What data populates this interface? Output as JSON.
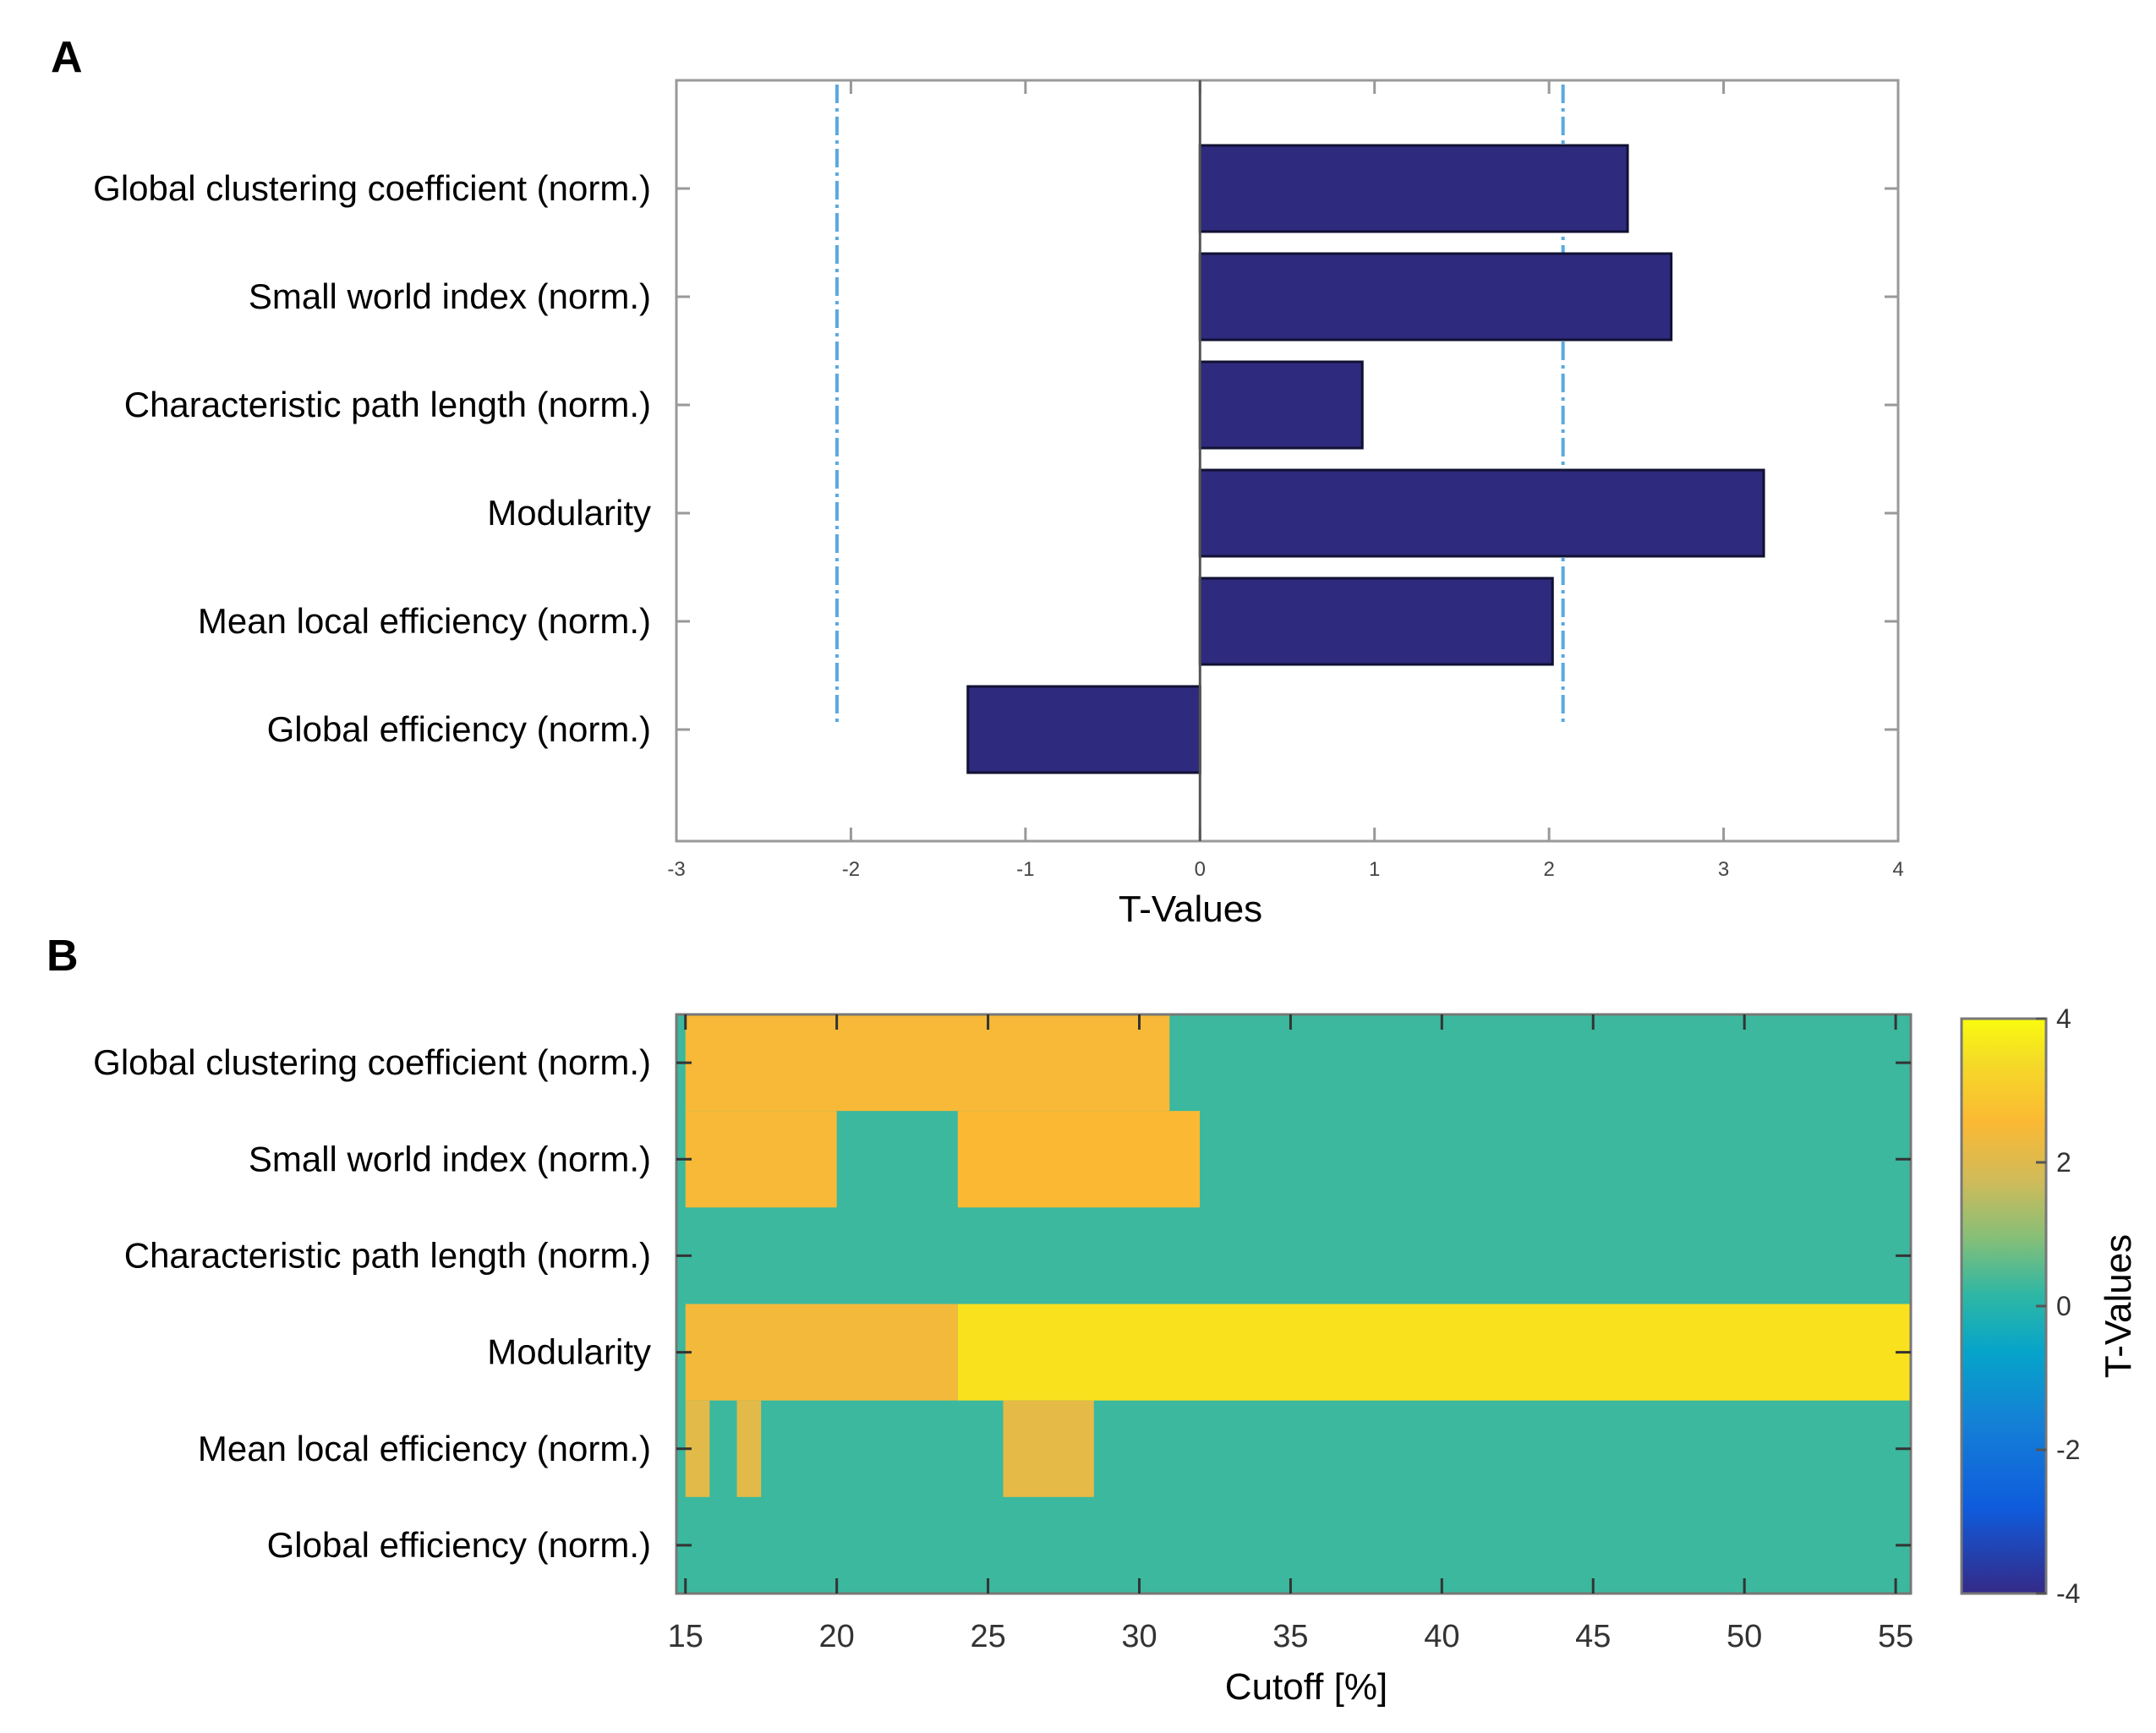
{
  "chart_data": [
    {
      "panel": "A",
      "type": "bar",
      "orientation": "horizontal",
      "title": "",
      "xlabel": "T-Values",
      "ylabel": "",
      "xlim": [
        -3,
        4
      ],
      "xticks": [
        "-3",
        "-2",
        "-1",
        "0",
        "1",
        "2",
        "3",
        "4"
      ],
      "categories": [
        "Global clustering coefficient (norm.)",
        "Small world index (norm.)",
        "Characteristic path length (norm.)",
        "Modularity",
        "Mean local efficiency (norm.)",
        "Global efficiency (norm.)"
      ],
      "values": [
        2.45,
        2.7,
        0.93,
        3.23,
        2.02,
        -1.33
      ],
      "threshold_lines": [
        -2.08,
        2.08
      ],
      "bar_color": "#2e2a7e",
      "threshold_color": "#5aa9e0"
    },
    {
      "panel": "B",
      "type": "heatmap",
      "title": "",
      "xlabel": "Cutoff [%]",
      "ylabel": "",
      "colorbar_label": "T-Values",
      "x_start": 15,
      "x_end": 55,
      "xticks": [
        "15",
        "20",
        "25",
        "30",
        "35",
        "40",
        "45",
        "50",
        "55"
      ],
      "colorbar_range": [
        -4,
        4
      ],
      "colorbar_ticks": [
        "4",
        "2",
        "0",
        "-2",
        "-4"
      ],
      "nonsig_color": "#3bb89e",
      "categories": [
        "Global clustering coefficient (norm.)",
        "Small world index (norm.)",
        "Characteristic path length (norm.)",
        "Modularity",
        "Mean local efficiency (norm.)",
        "Global efficiency (norm.)"
      ],
      "significant_segments": [
        [
          [
            15,
            31,
            2.9
          ]
        ],
        [
          [
            15,
            20,
            2.9
          ],
          [
            24,
            32,
            3.0
          ]
        ],
        [],
        [
          [
            15,
            24,
            2.8
          ],
          [
            24,
            56,
            3.6
          ]
        ],
        [
          [
            15,
            15.8,
            2.4
          ],
          [
            16.7,
            17.5,
            2.4
          ],
          [
            25.5,
            28.5,
            2.5
          ]
        ],
        []
      ]
    }
  ]
}
